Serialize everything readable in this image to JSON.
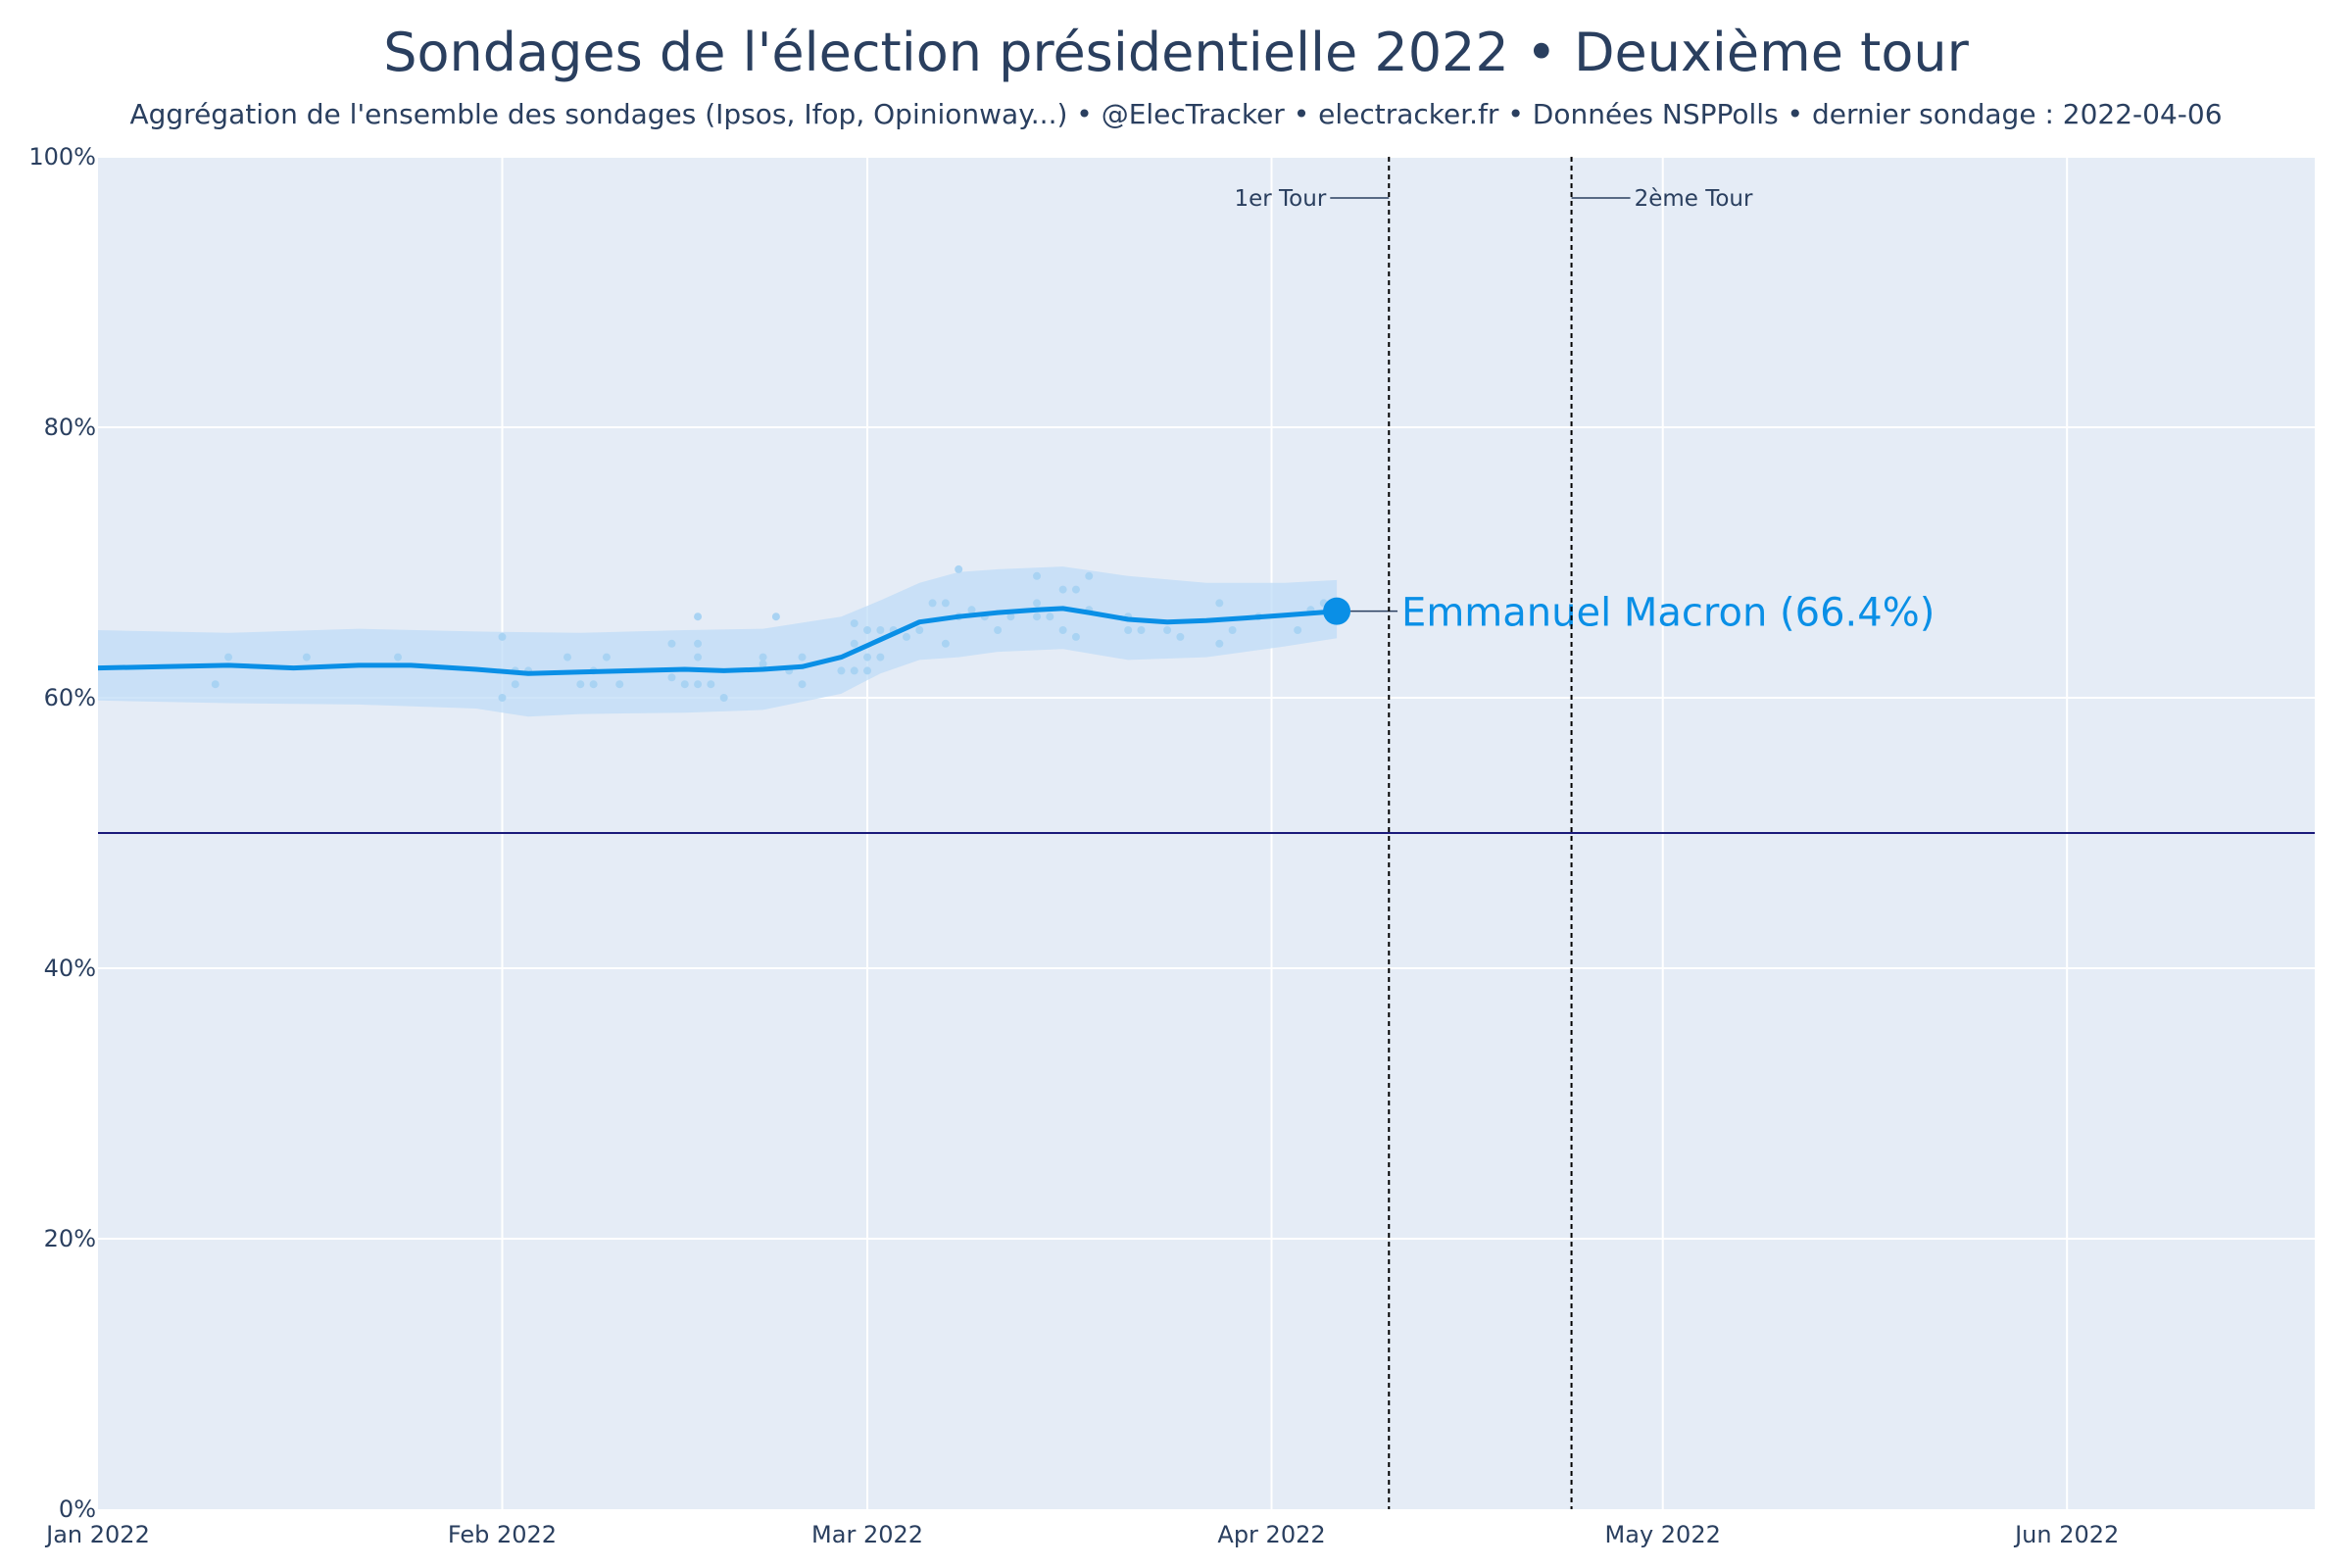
{
  "title": "Sondages de l'élection présidentielle 2022 • Deuxième tour",
  "subtitle": "Aggrégation de l'ensemble des sondages (Ipsos, Ifop, Opinionway...) • @ElecTracker • electracker.fr • Données NSPPolls • dernier sondage : 2022-04-06",
  "colors": {
    "background": "#e5ecf6",
    "grid": "#ffffff",
    "line": "#0a8fe6",
    "band": "#bfdcf7",
    "points": "#a9d3f3",
    "threshold": "#1a1a7a",
    "annotation": "#2a3f5f"
  },
  "chart_data": {
    "type": "line",
    "title": "Sondages de l'élection présidentielle 2022 • Deuxième tour",
    "xlabel": "",
    "ylabel": "",
    "xlim": [
      "2022-01-01",
      "2022-06-20"
    ],
    "ylim": [
      0,
      100
    ],
    "x_ticks": [
      {
        "date": "2022-01-01",
        "label": "Jan 2022"
      },
      {
        "date": "2022-02-01",
        "label": "Feb 2022"
      },
      {
        "date": "2022-03-01",
        "label": "Mar 2022"
      },
      {
        "date": "2022-04-01",
        "label": "Apr 2022"
      },
      {
        "date": "2022-05-01",
        "label": "May 2022"
      },
      {
        "date": "2022-06-01",
        "label": "Jun 2022"
      }
    ],
    "y_ticks": [
      {
        "value": 0,
        "label": "0%"
      },
      {
        "value": 20,
        "label": "20%"
      },
      {
        "value": 40,
        "label": "40%"
      },
      {
        "value": 60,
        "label": "60%"
      },
      {
        "value": 80,
        "label": "80%"
      },
      {
        "value": 100,
        "label": "100%"
      }
    ],
    "grid": true,
    "threshold": 50,
    "events": [
      {
        "date": "2022-04-10",
        "label": "1er Tour",
        "side": "left"
      },
      {
        "date": "2022-04-24",
        "label": "2ème Tour",
        "side": "right"
      }
    ],
    "series": [
      {
        "name": "Emmanuel Macron",
        "label": "Emmanuel Macron (66.4%)",
        "final": {
          "date": "2022-04-06",
          "value": 66.4
        },
        "trend": [
          [
            "2022-01-01",
            62.2
          ],
          [
            "2022-01-06",
            62.3
          ],
          [
            "2022-01-11",
            62.4
          ],
          [
            "2022-01-16",
            62.2
          ],
          [
            "2022-01-21",
            62.4
          ],
          [
            "2022-01-25",
            62.4
          ],
          [
            "2022-01-30",
            62.1
          ],
          [
            "2022-02-03",
            61.8
          ],
          [
            "2022-02-07",
            61.9
          ],
          [
            "2022-02-11",
            62.0
          ],
          [
            "2022-02-15",
            62.1
          ],
          [
            "2022-02-18",
            62.0
          ],
          [
            "2022-02-21",
            62.1
          ],
          [
            "2022-02-24",
            62.3
          ],
          [
            "2022-02-27",
            63.0
          ],
          [
            "2022-03-02",
            64.3
          ],
          [
            "2022-03-05",
            65.6
          ],
          [
            "2022-03-08",
            66.0
          ],
          [
            "2022-03-11",
            66.3
          ],
          [
            "2022-03-14",
            66.5
          ],
          [
            "2022-03-16",
            66.6
          ],
          [
            "2022-03-18",
            66.3
          ],
          [
            "2022-03-21",
            65.8
          ],
          [
            "2022-03-24",
            65.6
          ],
          [
            "2022-03-27",
            65.7
          ],
          [
            "2022-03-30",
            65.9
          ],
          [
            "2022-04-02",
            66.1
          ],
          [
            "2022-04-06",
            66.4
          ]
        ],
        "band_upper": [
          [
            "2022-01-01",
            65.0
          ],
          [
            "2022-01-11",
            64.8
          ],
          [
            "2022-01-21",
            65.1
          ],
          [
            "2022-01-30",
            64.9
          ],
          [
            "2022-02-07",
            64.8
          ],
          [
            "2022-02-15",
            65.0
          ],
          [
            "2022-02-21",
            65.1
          ],
          [
            "2022-02-27",
            66.0
          ],
          [
            "2022-03-02",
            67.2
          ],
          [
            "2022-03-05",
            68.5
          ],
          [
            "2022-03-08",
            69.3
          ],
          [
            "2022-03-11",
            69.5
          ],
          [
            "2022-03-16",
            69.7
          ],
          [
            "2022-03-21",
            69.0
          ],
          [
            "2022-03-27",
            68.5
          ],
          [
            "2022-04-02",
            68.5
          ],
          [
            "2022-04-06",
            68.7
          ]
        ],
        "band_lower": [
          [
            "2022-01-01",
            59.8
          ],
          [
            "2022-01-11",
            59.6
          ],
          [
            "2022-01-21",
            59.5
          ],
          [
            "2022-01-30",
            59.2
          ],
          [
            "2022-02-03",
            58.6
          ],
          [
            "2022-02-07",
            58.8
          ],
          [
            "2022-02-15",
            58.9
          ],
          [
            "2022-02-21",
            59.1
          ],
          [
            "2022-02-27",
            60.3
          ],
          [
            "2022-03-02",
            61.8
          ],
          [
            "2022-03-05",
            62.8
          ],
          [
            "2022-03-08",
            63.0
          ],
          [
            "2022-03-11",
            63.4
          ],
          [
            "2022-03-16",
            63.6
          ],
          [
            "2022-03-21",
            62.8
          ],
          [
            "2022-03-27",
            63.0
          ],
          [
            "2022-04-02",
            63.8
          ],
          [
            "2022-04-06",
            64.4
          ]
        ],
        "polls": [
          [
            "2022-01-10",
            61
          ],
          [
            "2022-01-11",
            63
          ],
          [
            "2022-01-17",
            63
          ],
          [
            "2022-01-24",
            63
          ],
          [
            "2022-02-01",
            64.5
          ],
          [
            "2022-02-01",
            60
          ],
          [
            "2022-02-02",
            62
          ],
          [
            "2022-02-02",
            61
          ],
          [
            "2022-02-03",
            62
          ],
          [
            "2022-02-06",
            63
          ],
          [
            "2022-02-07",
            61
          ],
          [
            "2022-02-08",
            62
          ],
          [
            "2022-02-08",
            61
          ],
          [
            "2022-02-09",
            63
          ],
          [
            "2022-02-10",
            61
          ],
          [
            "2022-02-14",
            64
          ],
          [
            "2022-02-14",
            61.5
          ],
          [
            "2022-02-15",
            61
          ],
          [
            "2022-02-16",
            66
          ],
          [
            "2022-02-16",
            64
          ],
          [
            "2022-02-16",
            63
          ],
          [
            "2022-02-16",
            61
          ],
          [
            "2022-02-17",
            61
          ],
          [
            "2022-02-18",
            60
          ],
          [
            "2022-02-21",
            63
          ],
          [
            "2022-02-21",
            62.5
          ],
          [
            "2022-02-22",
            66
          ],
          [
            "2022-02-23",
            62
          ],
          [
            "2022-02-24",
            63
          ],
          [
            "2022-02-24",
            61
          ],
          [
            "2022-02-27",
            62
          ],
          [
            "2022-02-28",
            65.5
          ],
          [
            "2022-02-28",
            64
          ],
          [
            "2022-02-28",
            62
          ],
          [
            "2022-03-01",
            65
          ],
          [
            "2022-03-01",
            63
          ],
          [
            "2022-03-01",
            62
          ],
          [
            "2022-03-02",
            65
          ],
          [
            "2022-03-02",
            63
          ],
          [
            "2022-03-03",
            65
          ],
          [
            "2022-03-04",
            64.5
          ],
          [
            "2022-03-05",
            65
          ],
          [
            "2022-03-06",
            67
          ],
          [
            "2022-03-07",
            67
          ],
          [
            "2022-03-07",
            64
          ],
          [
            "2022-03-08",
            69.5
          ],
          [
            "2022-03-08",
            66
          ],
          [
            "2022-03-09",
            66.5
          ],
          [
            "2022-03-10",
            66
          ],
          [
            "2022-03-11",
            65
          ],
          [
            "2022-03-12",
            66
          ],
          [
            "2022-03-14",
            69
          ],
          [
            "2022-03-14",
            67
          ],
          [
            "2022-03-14",
            66
          ],
          [
            "2022-03-15",
            66
          ],
          [
            "2022-03-16",
            68
          ],
          [
            "2022-03-16",
            65
          ],
          [
            "2022-03-17",
            68
          ],
          [
            "2022-03-17",
            64.5
          ],
          [
            "2022-03-18",
            69
          ],
          [
            "2022-03-18",
            66.5
          ],
          [
            "2022-03-21",
            66
          ],
          [
            "2022-03-21",
            65
          ],
          [
            "2022-03-22",
            65
          ],
          [
            "2022-03-24",
            65
          ],
          [
            "2022-03-25",
            64.5
          ],
          [
            "2022-03-28",
            67
          ],
          [
            "2022-03-28",
            64
          ],
          [
            "2022-03-29",
            65
          ],
          [
            "2022-03-31",
            66
          ],
          [
            "2022-04-03",
            65
          ],
          [
            "2022-04-04",
            66.5
          ],
          [
            "2022-04-05",
            67
          ]
        ]
      }
    ]
  }
}
